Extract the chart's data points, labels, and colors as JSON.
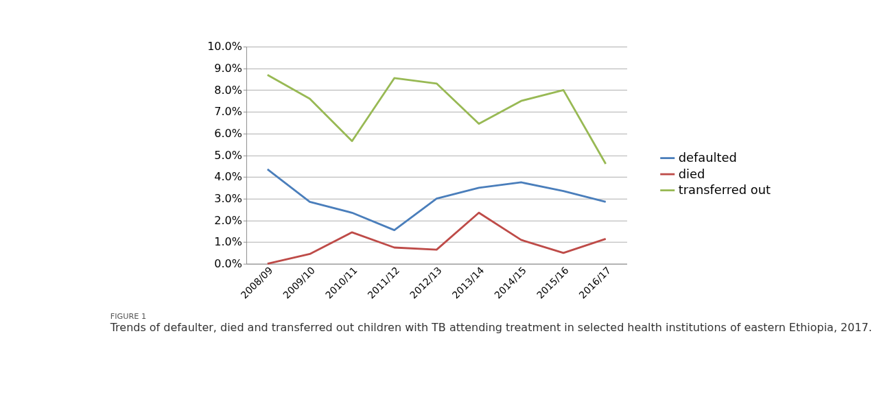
{
  "chart_data": {
    "type": "line",
    "title": "FIGURE 1",
    "subtitle": "Trends of defaulter, died and transferred out children with TB attending treatment in selected health institutions of eastern Ethiopia, 2017.",
    "categories": [
      "2008/09",
      "2009/10",
      "2010/11",
      "2011/12",
      "2012/13",
      "2013/14",
      "2014/15",
      "2015/16",
      "2016/17"
    ],
    "series": [
      {
        "name": "defaulted",
        "color": "#4a7ebb",
        "values": [
          4.35,
          2.85,
          2.35,
          1.55,
          3.0,
          3.5,
          3.75,
          3.35,
          2.85
        ]
      },
      {
        "name": "died",
        "color": "#be4b48",
        "values": [
          0.0,
          0.45,
          1.45,
          0.75,
          0.65,
          2.35,
          1.1,
          0.5,
          1.15
        ]
      },
      {
        "name": "transferred out",
        "color": "#98b954",
        "values": [
          8.7,
          7.6,
          5.65,
          8.55,
          8.3,
          6.45,
          7.5,
          8.0,
          4.6
        ]
      }
    ],
    "ylim": [
      0,
      10
    ],
    "yticks": [
      {
        "value": 0,
        "label": "0.0%"
      },
      {
        "value": 1,
        "label": "1.0%"
      },
      {
        "value": 2,
        "label": "2.0%"
      },
      {
        "value": 3,
        "label": "3.0%"
      },
      {
        "value": 4,
        "label": "4.0%"
      },
      {
        "value": 5,
        "label": "5.0%"
      },
      {
        "value": 6,
        "label": "6.0%"
      },
      {
        "value": 7,
        "label": "7.0%"
      },
      {
        "value": 8,
        "label": "8.0%"
      },
      {
        "value": 9,
        "label": "9.0%"
      },
      {
        "value": 10,
        "label": "10.0%"
      }
    ],
    "grid": "y",
    "legend": "right",
    "marker": "none",
    "line_style": "solid"
  }
}
